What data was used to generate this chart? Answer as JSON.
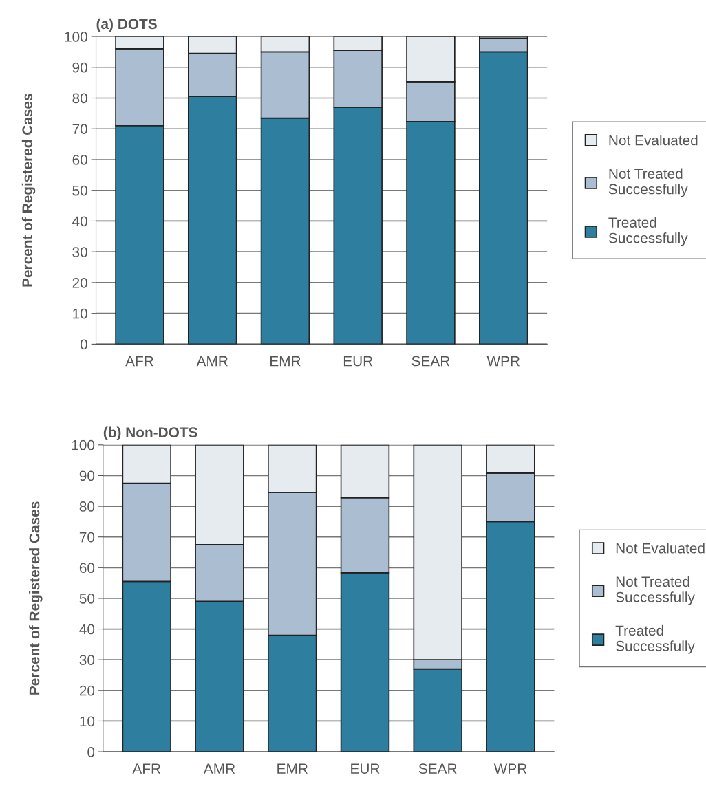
{
  "chart_data": [
    {
      "type": "bar",
      "title": "(a) DOTS",
      "ylabel": "Percent of Registered Cases",
      "categories": [
        "AFR",
        "AMR",
        "EMR",
        "EUR",
        "SEAR",
        "WPR"
      ],
      "stacked": true,
      "ylim": [
        0,
        100
      ],
      "yticks": [
        0,
        10,
        20,
        30,
        40,
        50,
        60,
        70,
        80,
        90,
        100
      ],
      "grid": "y",
      "legend": "right",
      "series": [
        {
          "name": "Treated\nSuccessfully",
          "color": "#2e7ea0",
          "values": [
            71,
            80.5,
            73.5,
            77,
            72.3,
            95
          ]
        },
        {
          "name": "Not Treated\nSuccessfully",
          "color": "#abbdd0",
          "values": [
            25,
            14,
            21.5,
            18.5,
            13,
            4.5
          ]
        },
        {
          "name": "Not Evaluated",
          "color": "#e6ebf0",
          "values": [
            4,
            5.5,
            5,
            4.5,
            14.7,
            0.5
          ]
        }
      ]
    },
    {
      "type": "bar",
      "title": "(b) Non-DOTS",
      "ylabel": "Percent of Registered Cases",
      "categories": [
        "AFR",
        "AMR",
        "EMR",
        "EUR",
        "SEAR",
        "WPR"
      ],
      "stacked": true,
      "ylim": [
        0,
        100
      ],
      "yticks": [
        0,
        10,
        20,
        30,
        40,
        50,
        60,
        70,
        80,
        90,
        100
      ],
      "grid": "y",
      "legend": "right",
      "series": [
        {
          "name": "Treated\nSuccessfully",
          "color": "#2e7ea0",
          "values": [
            55.5,
            49,
            38,
            58.3,
            27,
            75
          ]
        },
        {
          "name": "Not Treated\nSuccessfully",
          "color": "#abbdd0",
          "values": [
            32,
            18.5,
            46.5,
            24.5,
            3,
            15.8
          ]
        },
        {
          "name": "Not Evaluated",
          "color": "#e6ebf0",
          "values": [
            12.5,
            32.5,
            15.5,
            17.2,
            70,
            9.2
          ]
        }
      ]
    }
  ]
}
